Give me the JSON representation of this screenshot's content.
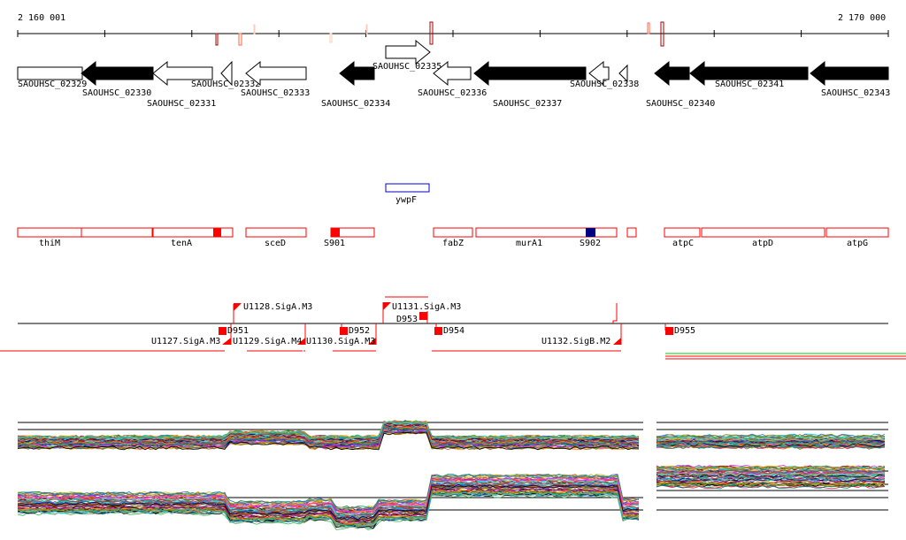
{
  "ruler": {
    "start": "2 160 001",
    "end": "2 170 000"
  },
  "genes": [
    {
      "name": "SAOUHSC_02329",
      "label": "SAOUHSC_02329",
      "fill": "white",
      "dir": "none"
    },
    {
      "name": "SAOUHSC_02330",
      "label": "SAOUHSC_02330",
      "fill": "black",
      "dir": "left"
    },
    {
      "name": "SAOUHSC_02331",
      "label": "SAOUHSC_02331",
      "fill": "white",
      "dir": "left"
    },
    {
      "name": "SAOUHSC_02332",
      "label": "SAOUHSC_02332",
      "fill": "white",
      "dir": "left"
    },
    {
      "name": "SAOUHSC_02333",
      "label": "SAOUHSC_02333",
      "fill": "white",
      "dir": "left"
    },
    {
      "name": "SAOUHSC_02334",
      "label": "SAOUHSC_02334",
      "fill": "black",
      "dir": "left"
    },
    {
      "name": "SAOUHSC_02335",
      "label": "SAOUHSC_02335",
      "fill": "white",
      "dir": "right"
    },
    {
      "name": "SAOUHSC_02336",
      "label": "SAOUHSC_02336",
      "fill": "white",
      "dir": "left"
    },
    {
      "name": "SAOUHSC_02337",
      "label": "SAOUHSC_02337",
      "fill": "black",
      "dir": "left"
    },
    {
      "name": "SAOUHSC_02338",
      "label": "SAOUHSC_02338",
      "fill": "white",
      "dir": "left"
    },
    {
      "name": "SAOUHSC_02340",
      "label": "SAOUHSC_02340",
      "fill": "black",
      "dir": "left"
    },
    {
      "name": "SAOUHSC_02341",
      "label": "SAOUHSC_02341",
      "fill": "black",
      "dir": "left"
    },
    {
      "name": "SAOUHSC_02343",
      "label": "SAOUHSC_02343",
      "fill": "black",
      "dir": "left"
    }
  ],
  "other_feature": "ywpF",
  "operons": [
    "thiM",
    "tenA",
    "sceD",
    "S901",
    "fabZ",
    "murA1",
    "S902",
    "atpC",
    "atpD",
    "atpG"
  ],
  "promoters": [
    "U1127.SigA.M3",
    "U1128.SigA.M3",
    "U1129.SigA.M4",
    "U1130.SigA.M3",
    "U1131.SigA.M3",
    "U1132.SigB.M2"
  ],
  "terminators": [
    "D951",
    "D952",
    "D953",
    "D954",
    "D955"
  ],
  "colors": {
    "feature": "#ff0000",
    "operon_marker_blue": "#000080",
    "ywpF": "#0000cc"
  }
}
